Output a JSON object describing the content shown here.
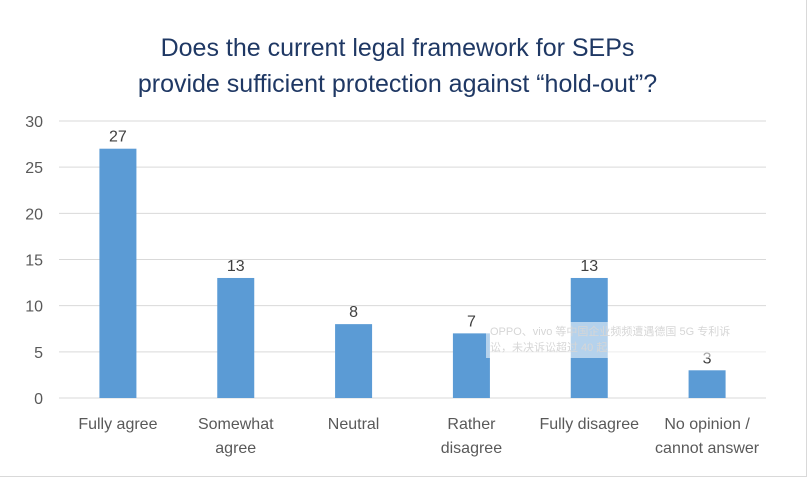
{
  "chart_data": {
    "type": "bar",
    "title_lines": [
      "Does the current legal framework for SEPs",
      "provide sufficient protection against “hold-out”?"
    ],
    "categories": [
      [
        "Fully agree"
      ],
      [
        "Somewhat",
        "agree"
      ],
      [
        "Neutral"
      ],
      [
        "Rather",
        "disagree"
      ],
      [
        "Fully disagree"
      ],
      [
        "No opinion /",
        "cannot answer"
      ]
    ],
    "values": [
      27,
      13,
      8,
      7,
      13,
      3
    ],
    "ylim": [
      0,
      30
    ],
    "yticks": [
      0,
      5,
      10,
      15,
      20,
      25,
      30
    ],
    "grid": true,
    "bar_color": "#5b9bd5",
    "grid_color": "#d9d9d9"
  },
  "watermark": {
    "lines": [
      "OPPO、vivo 等中国企业频频遭遇德国 5G 专利诉",
      "讼，未决诉讼超过 40 起"
    ]
  }
}
